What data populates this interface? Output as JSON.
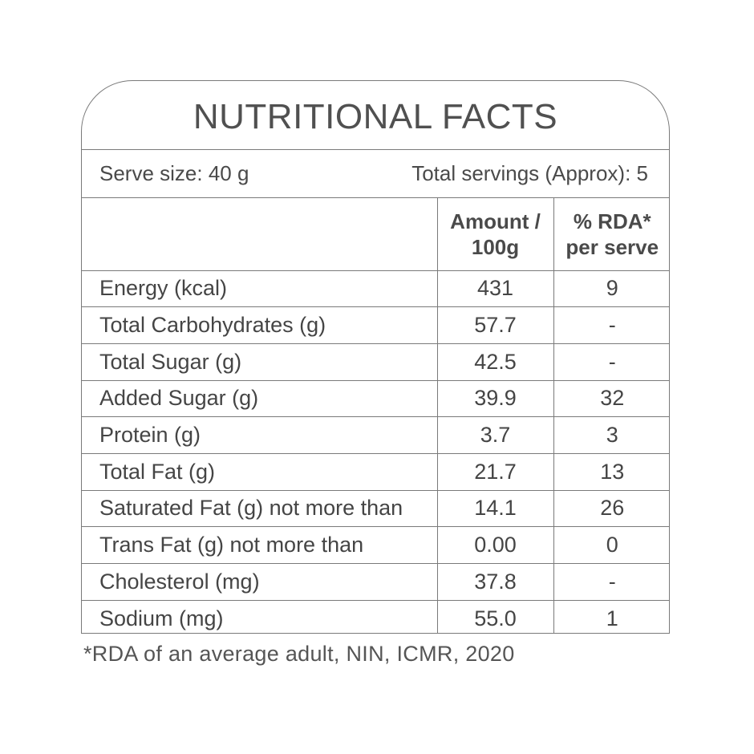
{
  "title": "NUTRITIONAL FACTS",
  "serve_size": "Serve size: 40 g",
  "total_servings": "Total servings (Approx): 5",
  "columns": {
    "nutrient": "",
    "amount_line1": "Amount /",
    "amount_line2": "100g",
    "rda_line1": "% RDA*",
    "rda_line2": "per serve"
  },
  "rows": [
    {
      "name": "Energy (kcal)",
      "amount": "431",
      "rda": "9"
    },
    {
      "name": "Total Carbohydrates (g)",
      "amount": "57.7",
      "rda": "-"
    },
    {
      "name": "Total Sugar (g)",
      "amount": "42.5",
      "rda": "-"
    },
    {
      "name": "Added Sugar (g)",
      "amount": "39.9",
      "rda": "32"
    },
    {
      "name": "Protein (g)",
      "amount": "3.7",
      "rda": "3"
    },
    {
      "name": "Total Fat (g)",
      "amount": "21.7",
      "rda": "13"
    },
    {
      "name": "Saturated Fat (g) not more than",
      "amount": "14.1",
      "rda": "26"
    },
    {
      "name": "Trans Fat (g) not more than",
      "amount": "0.00",
      "rda": "0"
    },
    {
      "name": "Cholesterol (mg)",
      "amount": "37.8",
      "rda": "-"
    },
    {
      "name": "Sodium (mg)",
      "amount": "55.0",
      "rda": "1"
    }
  ],
  "footnote": "*RDA of an average adult, NIN, ICMR, 2020",
  "colors": {
    "border": "#7a7a7a",
    "text": "#444444"
  }
}
